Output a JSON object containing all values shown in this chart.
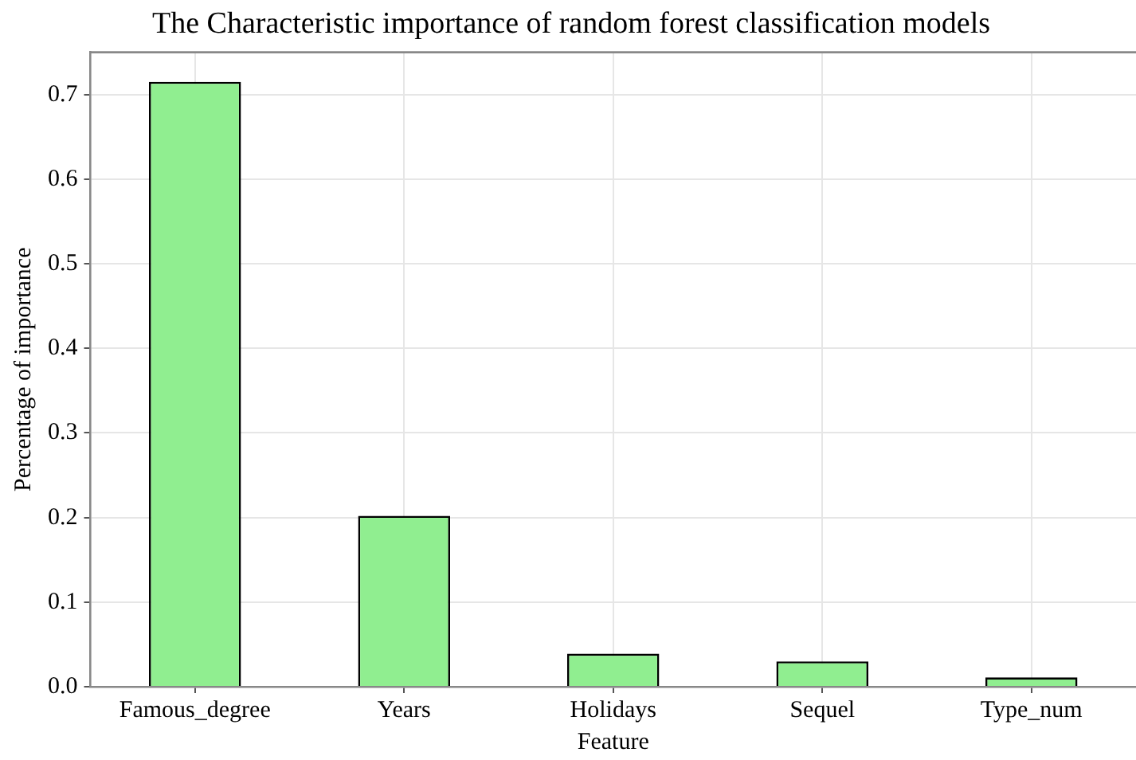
{
  "chart_data": {
    "type": "bar",
    "title": "The Characteristic importance of random forest classification models",
    "xlabel": "Feature",
    "ylabel": "Percentage of importance",
    "categories": [
      "Famous_degree",
      "Years",
      "Holidays",
      "Sequel",
      "Type_num"
    ],
    "values": [
      0.715,
      0.202,
      0.039,
      0.03,
      0.011
    ],
    "color": "#90ee90",
    "ylim": [
      0,
      0.75
    ],
    "yticks": [
      {
        "value": 0,
        "label": "0.0"
      },
      0.1,
      0.2,
      0.3,
      0.4,
      0.5,
      0.6,
      0.7
    ],
    "grid": true,
    "legend": false
  }
}
